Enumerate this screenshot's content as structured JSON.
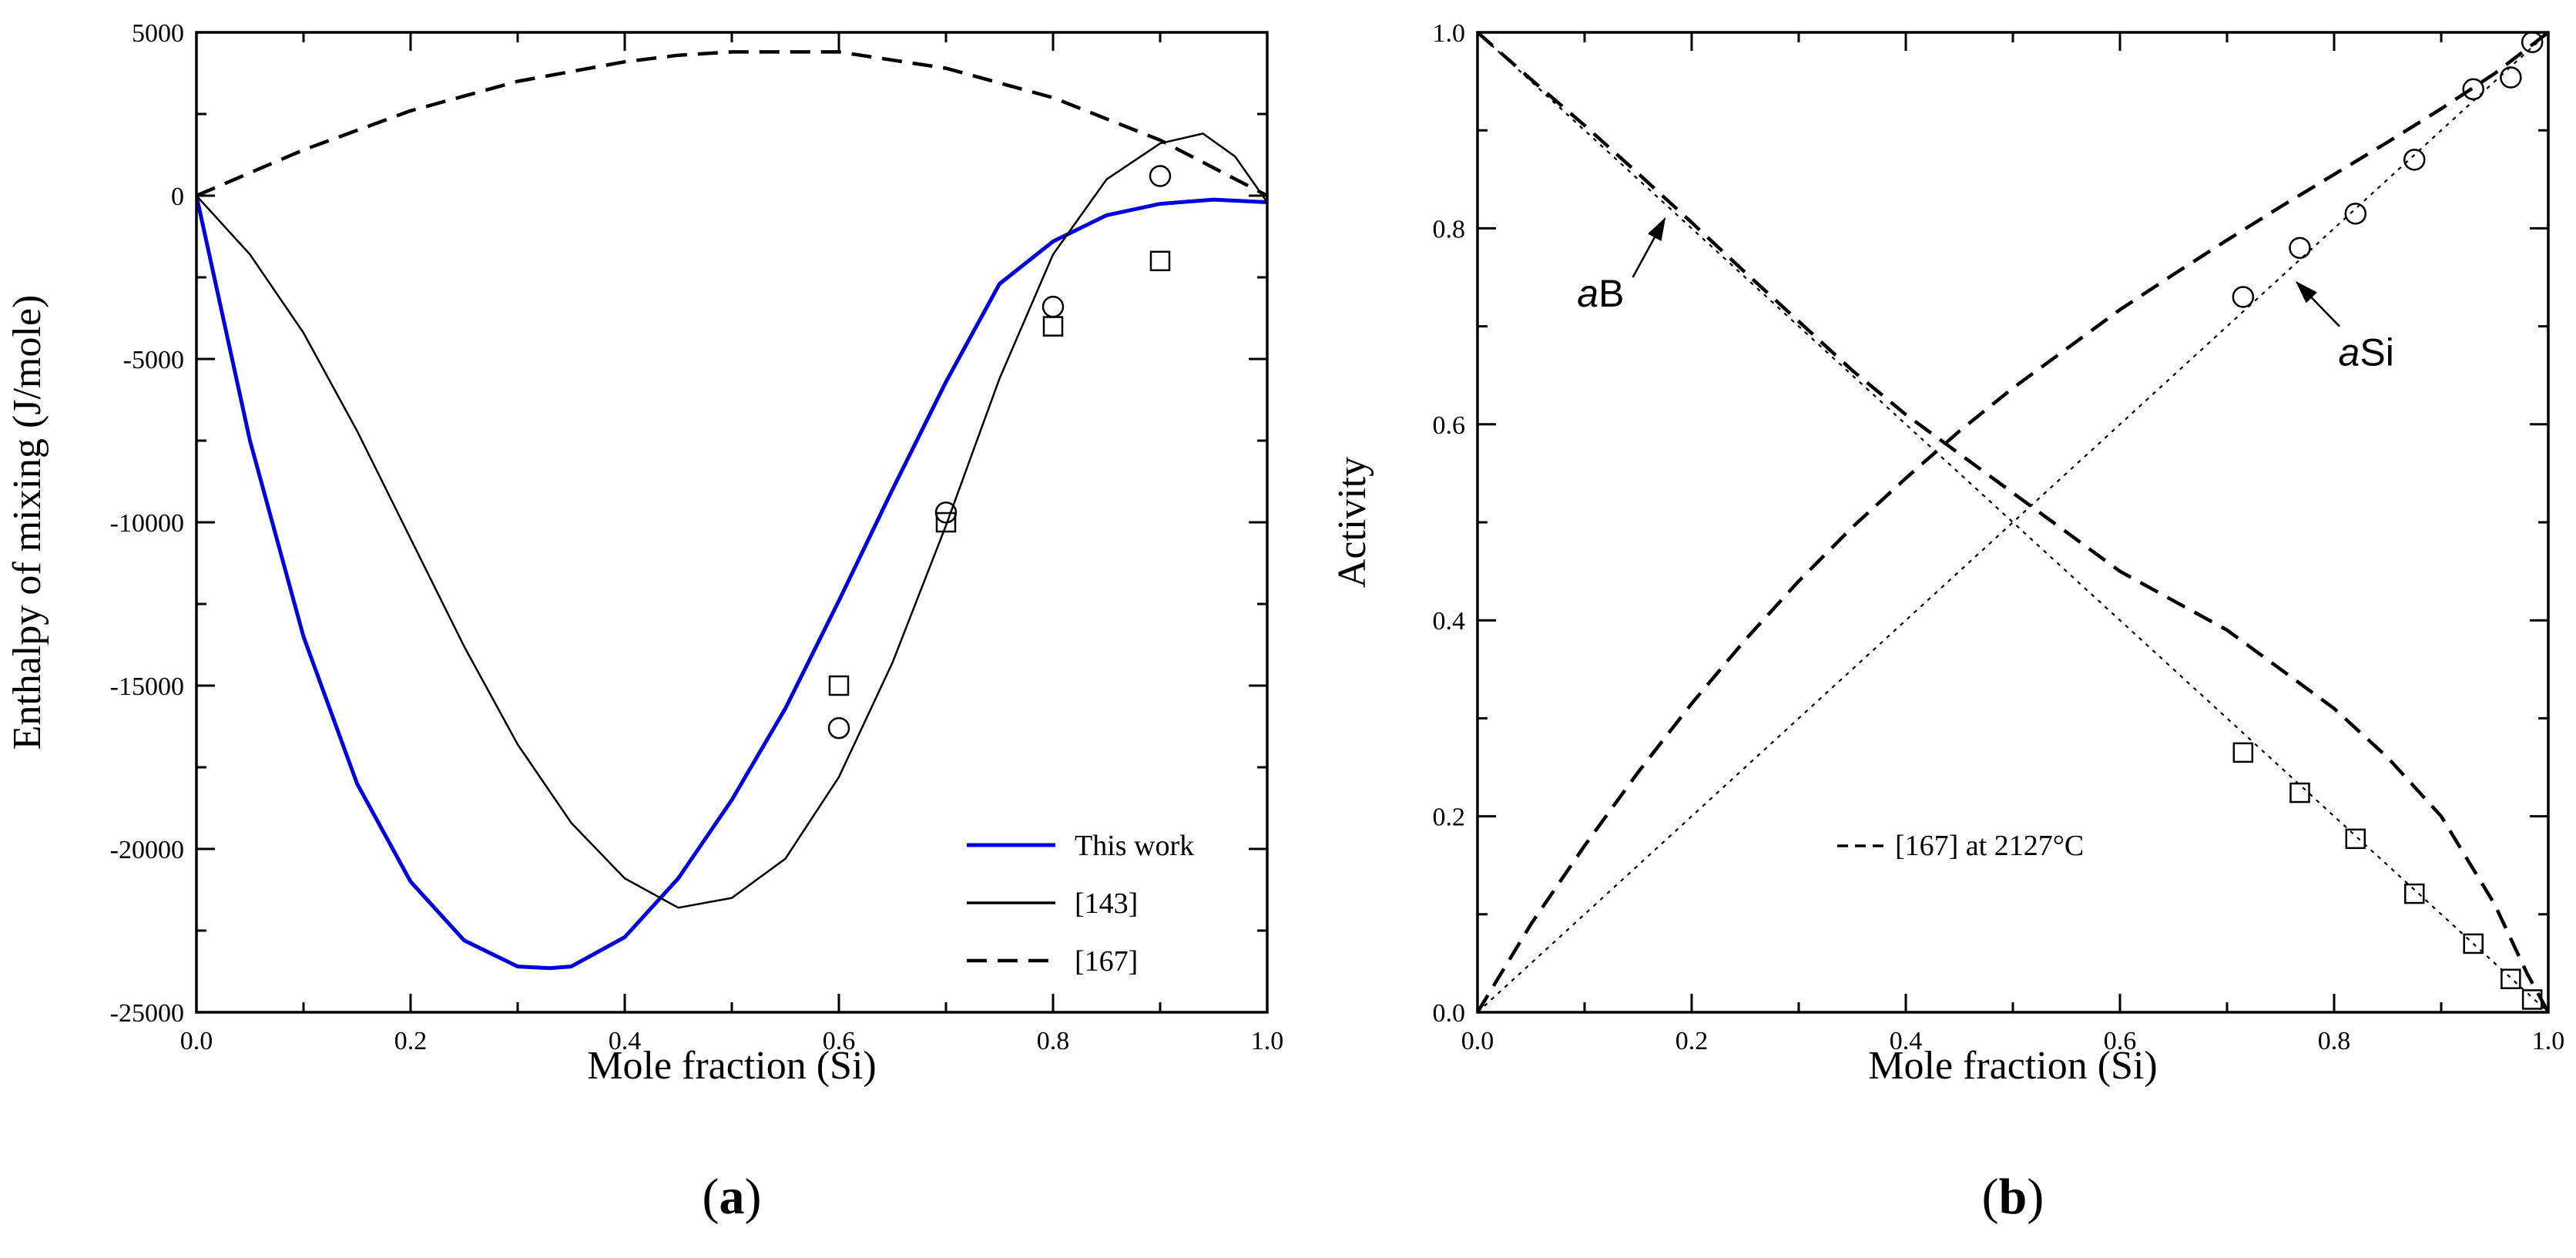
{
  "chart_data": [
    {
      "panel_label_open": "(",
      "panel_label_letter": "a",
      "panel_label_close": ")",
      "type": "line",
      "xlabel": "Mole fraction (Si)",
      "ylabel": "Enthalpy of mixing (J/mole)",
      "xlim": [
        0,
        1
      ],
      "ylim": [
        -25000,
        5000
      ],
      "xticks": [
        0.0,
        0.2,
        0.4,
        0.6,
        0.8,
        1.0
      ],
      "xtick_labels": [
        "0.0",
        "0.2",
        "0.4",
        "0.6",
        "0.8",
        "1.0"
      ],
      "yticks": [
        -25000,
        -20000,
        -15000,
        -10000,
        -5000,
        0,
        5000
      ],
      "ytick_labels": [
        "-25000",
        "-20000",
        "-15000",
        "-10000",
        "-5000",
        "0",
        "5000"
      ],
      "grid": false,
      "legend_position": "bottom-right",
      "series": [
        {
          "name": "This work",
          "style": "solid",
          "color": "#0000dd",
          "x": [
            0,
            0.02,
            0.05,
            0.1,
            0.15,
            0.2,
            0.25,
            0.3,
            0.33,
            0.35,
            0.4,
            0.45,
            0.5,
            0.55,
            0.6,
            0.65,
            0.7,
            0.75,
            0.8,
            0.85,
            0.9,
            0.95,
            1.0
          ],
          "y": [
            0,
            -3000,
            -7500,
            -13500,
            -18000,
            -21000,
            -22800,
            -23600,
            -23650,
            -23600,
            -22700,
            -20900,
            -18500,
            -15700,
            -12400,
            -9000,
            -5700,
            -2700,
            -1400,
            -600,
            -250,
            -120,
            -200
          ]
        },
        {
          "name": "[143]",
          "style": "solid",
          "color": "#000000",
          "x": [
            0,
            0.05,
            0.1,
            0.15,
            0.2,
            0.25,
            0.3,
            0.35,
            0.4,
            0.45,
            0.5,
            0.55,
            0.6,
            0.65,
            0.7,
            0.75,
            0.8,
            0.85,
            0.9,
            0.94,
            0.97,
            1.0
          ],
          "y": [
            0,
            -1800,
            -4200,
            -7200,
            -10500,
            -13800,
            -16800,
            -19200,
            -20900,
            -21800,
            -21500,
            -20300,
            -17800,
            -14300,
            -10100,
            -5600,
            -1800,
            500,
            1600,
            1900,
            1200,
            -200
          ]
        },
        {
          "name": "[167]",
          "style": "dashed",
          "color": "#000000",
          "x": [
            0,
            0.1,
            0.2,
            0.3,
            0.4,
            0.45,
            0.5,
            0.55,
            0.6,
            0.7,
            0.8,
            0.9,
            1.0
          ],
          "y": [
            0,
            1400,
            2600,
            3500,
            4100,
            4300,
            4400,
            4400,
            4400,
            3900,
            3000,
            1700,
            0
          ]
        }
      ],
      "markers": [
        {
          "shape": "square",
          "x": [
            0.6,
            0.7,
            0.8,
            0.9
          ],
          "y": [
            -15000,
            -10000,
            -4000,
            -2000
          ]
        },
        {
          "shape": "circle",
          "x": [
            0.6,
            0.7,
            0.8,
            0.9
          ],
          "y": [
            -16300,
            -9700,
            -3400,
            600
          ]
        }
      ]
    },
    {
      "panel_label_open": "(",
      "panel_label_letter": "b",
      "panel_label_close": ")",
      "type": "line",
      "xlabel": "Mole fraction (Si)",
      "ylabel": "Activity",
      "xlim": [
        0,
        1
      ],
      "ylim": [
        0,
        1
      ],
      "xticks": [
        0.0,
        0.2,
        0.4,
        0.6,
        0.8,
        1.0
      ],
      "xtick_labels": [
        "0.0",
        "0.2",
        "0.4",
        "0.6",
        "0.8",
        "1.0"
      ],
      "yticks": [
        0.0,
        0.2,
        0.4,
        0.6,
        0.8,
        1.0
      ],
      "ytick_labels": [
        "0.0",
        "0.2",
        "0.4",
        "0.6",
        "0.8",
        "1.0"
      ],
      "grid": false,
      "legend_position": "bottom-center",
      "legend": [
        {
          "name": "[167] at 2127°C",
          "style": "dashed"
        }
      ],
      "series": [
        {
          "name": "",
          "style": "dashed",
          "color": "#000000",
          "x": [
            0,
            0.05,
            0.1,
            0.15,
            0.2,
            0.25,
            0.3,
            0.35,
            0.4,
            0.45,
            0.5,
            0.55,
            0.6,
            0.65,
            0.7,
            0.75,
            0.8,
            0.85,
            0.9,
            0.95,
            1.0
          ],
          "y": [
            0,
            0.09,
            0.17,
            0.245,
            0.315,
            0.38,
            0.44,
            0.495,
            0.545,
            0.593,
            0.637,
            0.677,
            0.717,
            0.753,
            0.788,
            0.822,
            0.855,
            0.888,
            0.922,
            0.958,
            1.0
          ]
        },
        {
          "name": "",
          "style": "dashed",
          "color": "#000000",
          "x": [
            0,
            0.05,
            0.1,
            0.15,
            0.2,
            0.25,
            0.3,
            0.35,
            0.4,
            0.45,
            0.5,
            0.55,
            0.6,
            0.65,
            0.7,
            0.75,
            0.8,
            0.85,
            0.9,
            0.95,
            0.98,
            1.0
          ],
          "y": [
            1.0,
            0.952,
            0.905,
            0.856,
            0.806,
            0.755,
            0.705,
            0.655,
            0.61,
            0.57,
            0.53,
            0.49,
            0.45,
            0.42,
            0.39,
            0.35,
            0.31,
            0.26,
            0.2,
            0.11,
            0.04,
            0.0
          ]
        },
        {
          "name": "",
          "style": "dotted",
          "color": "#000000",
          "x": [
            0,
            1
          ],
          "y": [
            0,
            1
          ]
        },
        {
          "name": "",
          "style": "dotted",
          "color": "#000000",
          "x": [
            0,
            1
          ],
          "y": [
            1,
            0
          ]
        }
      ],
      "markers": [
        {
          "shape": "circle",
          "x": [
            0.715,
            0.768,
            0.82,
            0.875,
            0.93,
            0.965,
            0.985
          ],
          "y": [
            0.73,
            0.78,
            0.815,
            0.87,
            0.942,
            0.954,
            0.99
          ]
        },
        {
          "shape": "square",
          "x": [
            0.715,
            0.768,
            0.82,
            0.875,
            0.93,
            0.965,
            0.985
          ],
          "y": [
            0.265,
            0.224,
            0.177,
            0.121,
            0.07,
            0.034,
            0.013
          ]
        }
      ],
      "annotations": [
        {
          "italic": "a",
          "rest": "B",
          "text_x": 0.115,
          "text_y": 0.72,
          "arrow_from": [
            0.145,
            0.75
          ],
          "arrow_to": [
            0.175,
            0.81
          ]
        },
        {
          "italic": "a",
          "rest": "Si",
          "text_x": 0.83,
          "text_y": 0.66,
          "arrow_from": [
            0.805,
            0.7
          ],
          "arrow_to": [
            0.765,
            0.745
          ]
        }
      ]
    }
  ]
}
